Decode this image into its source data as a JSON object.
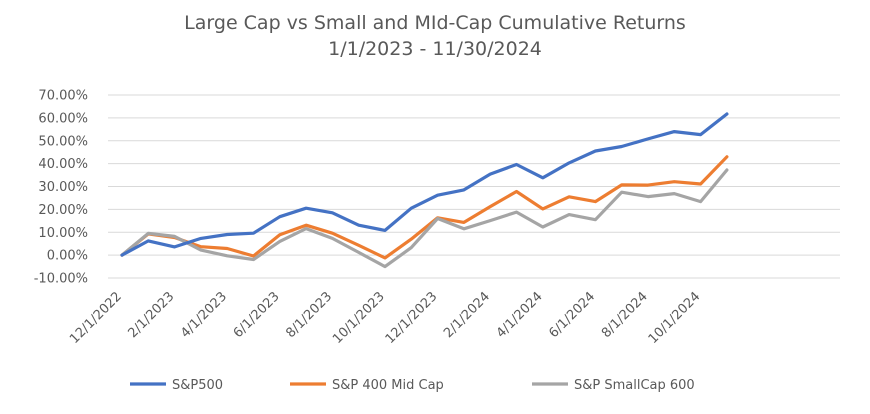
{
  "chart_data": {
    "type": "line",
    "title": "Large Cap vs Small and MId-Cap Cumulative Returns",
    "subtitle": "1/1/2023 - 11/30/2024",
    "ylim": [
      -0.1,
      0.7
    ],
    "y_ticks": [
      -0.1,
      0.0,
      0.1,
      0.2,
      0.3,
      0.4,
      0.5,
      0.6,
      0.7
    ],
    "y_tick_labels": [
      "-10.00%",
      "0.00%",
      "10.00%",
      "20.00%",
      "30.00%",
      "40.00%",
      "50.00%",
      "60.00%",
      "70.00%"
    ],
    "x": [
      "12/1/2022",
      "1/1/2023",
      "2/1/2023",
      "3/1/2023",
      "4/1/2023",
      "5/1/2023",
      "6/1/2023",
      "7/1/2023",
      "8/1/2023",
      "9/1/2023",
      "10/1/2023",
      "11/1/2023",
      "12/1/2023",
      "1/1/2024",
      "2/1/2024",
      "3/1/2024",
      "4/1/2024",
      "5/1/2024",
      "6/1/2024",
      "7/1/2024",
      "8/1/2024",
      "9/1/2024",
      "10/1/2024",
      "11/1/2024"
    ],
    "x_tick_labels": [
      "12/1/2022",
      "2/1/2023",
      "4/1/2023",
      "6/1/2023",
      "8/1/2023",
      "10/1/2023",
      "12/1/2023",
      "2/1/2024",
      "4/1/2024",
      "6/1/2024",
      "8/1/2024",
      "10/1/2024"
    ],
    "grid": true,
    "legend_position": "bottom",
    "series": [
      {
        "name": "S&P500",
        "color": "#4472C4",
        "values": [
          0.0,
          0.062,
          0.036,
          0.073,
          0.09,
          0.096,
          0.168,
          0.205,
          0.185,
          0.131,
          0.108,
          0.205,
          0.262,
          0.285,
          0.354,
          0.396,
          0.338,
          0.403,
          0.455,
          0.475,
          0.508,
          0.54,
          0.527,
          0.617
        ]
      },
      {
        "name": "S&P 400 Mid Cap",
        "color": "#ED7D31",
        "values": [
          0.0,
          0.093,
          0.077,
          0.037,
          0.029,
          -0.004,
          0.089,
          0.131,
          0.096,
          0.043,
          -0.012,
          0.07,
          0.163,
          0.143,
          0.212,
          0.278,
          0.202,
          0.255,
          0.234,
          0.307,
          0.306,
          0.321,
          0.311,
          0.43
        ]
      },
      {
        "name": "S&P SmallCap 600",
        "color": "#A5A5A5",
        "values": [
          0.0,
          0.095,
          0.082,
          0.022,
          -0.003,
          -0.019,
          0.06,
          0.116,
          0.073,
          0.012,
          -0.05,
          0.033,
          0.16,
          0.115,
          0.151,
          0.188,
          0.123,
          0.177,
          0.155,
          0.275,
          0.256,
          0.269,
          0.234,
          0.372
        ]
      }
    ]
  }
}
